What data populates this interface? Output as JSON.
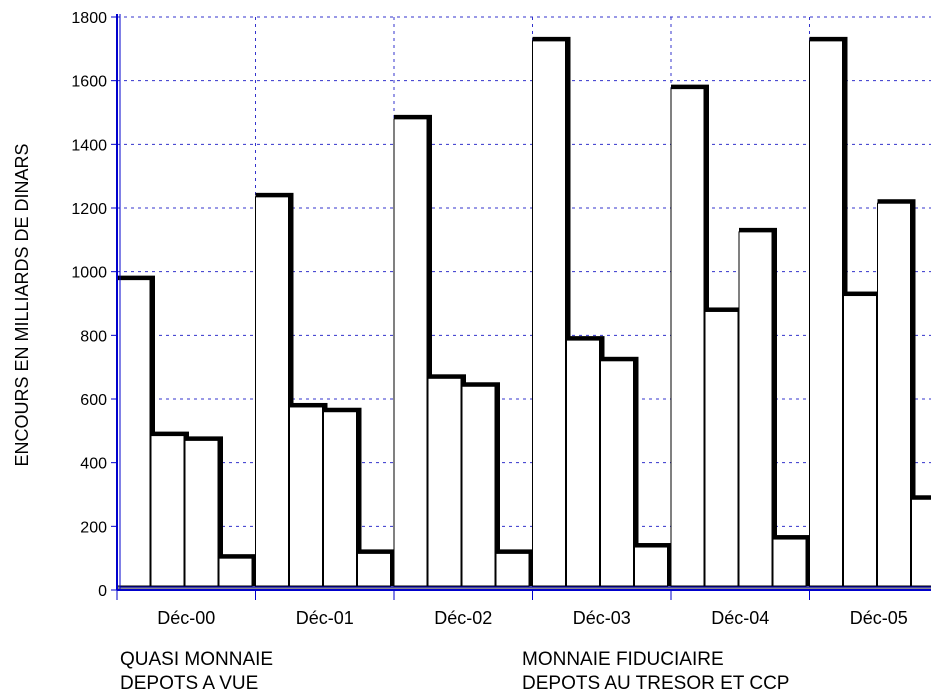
{
  "chart_data": {
    "type": "bar",
    "ylabel": "ENCOURS EN MILLIARDS DE DINARS",
    "xlabel": "",
    "ylim": [
      0,
      1800
    ],
    "yticks": [
      0,
      200,
      400,
      600,
      800,
      1000,
      1200,
      1400,
      1600,
      1800
    ],
    "grid": true,
    "categories": [
      "Déc-00",
      "Déc-01",
      "Déc-02",
      "Déc-03",
      "Déc-04",
      "Déc-05"
    ],
    "series": [
      {
        "name": "QUASI MONNAIE",
        "values": [
          975,
          1235,
          1480,
          1725,
          1575,
          1725
        ]
      },
      {
        "name": "MONNAIE FIDUCIAIRE",
        "values": [
          485,
          575,
          665,
          785,
          875,
          925
        ]
      },
      {
        "name": "DEPOTS A VUE",
        "values": [
          470,
          560,
          640,
          720,
          1125,
          1215
        ]
      },
      {
        "name": "DEPOTS AU TRESOR ET CCP",
        "values": [
          100,
          115,
          115,
          135,
          160,
          285
        ]
      }
    ],
    "legend_placement": "bottom",
    "colors": {
      "bar_fill": "#ffffff",
      "bar_shadow": "#000000",
      "axis": "#0000cc",
      "grid": "#3333cc",
      "floor": "#888888"
    }
  }
}
